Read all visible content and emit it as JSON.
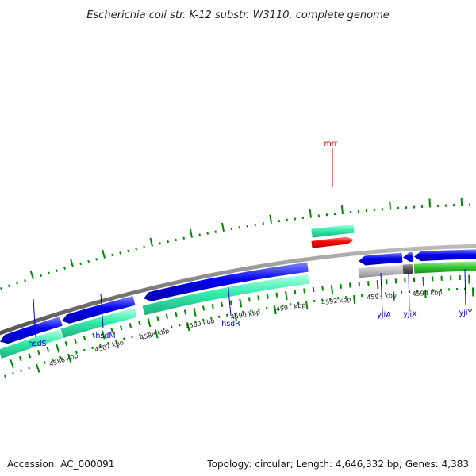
{
  "title": "Escherichia coli str. K-12 substr. W3110, complete genome",
  "scale": {
    "tick_labels": [
      "4586 kbp",
      "4587 kbp",
      "4588 kbp",
      "4589 kbp",
      "4590 kbp",
      "4591 kbp",
      "4592 kbp",
      "4593 kbp",
      "4594 kbp"
    ]
  },
  "genes": [
    {
      "name": "mrr",
      "color": "#cc0000"
    },
    {
      "name": "hsdS",
      "color": "#0000cc"
    },
    {
      "name": "hsdM",
      "color": "#0000cc"
    },
    {
      "name": "hsdR",
      "color": "#0000cc"
    },
    {
      "name": "yjiA",
      "color": "#0000cc"
    },
    {
      "name": "yjiX",
      "color": "#0000cc"
    },
    {
      "name": "yjiY",
      "color": "#0000cc"
    }
  ],
  "colors": {
    "cds_forward": "#ff0000",
    "cds_reverse": "#0000ee",
    "gene_track": "#33eeaa",
    "green_feature": "#33cc33",
    "gray_feature": "#bbbbbb",
    "dark_feature": "#555555",
    "backbone": "#888888",
    "gc_ticks": "#008800"
  },
  "footer": {
    "accession": "Accession: AC_000091",
    "summary": "Topology: circular; Length: 4,646,332 bp; Genes: 4,383"
  }
}
